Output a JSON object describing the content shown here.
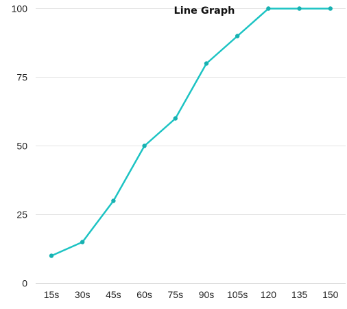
{
  "chart_data": {
    "type": "line",
    "title": "Line Graph",
    "xlabel": "",
    "ylabel": "",
    "categories": [
      "15s",
      "30s",
      "45s",
      "60s",
      "75s",
      "90s",
      "105s",
      "120",
      "135",
      "150"
    ],
    "series": [
      {
        "values": [
          10,
          15,
          30,
          50,
          60,
          80,
          90,
          100,
          100,
          100
        ]
      }
    ],
    "ylim": [
      0,
      100
    ],
    "yticks": [
      0,
      25,
      50,
      75,
      100
    ],
    "grid": true,
    "legend": "none",
    "colors": {
      "line": "#1cc3c3",
      "marker": "#17b1b1",
      "grid": "#e4e4e4",
      "axis": "#cccccc"
    }
  }
}
